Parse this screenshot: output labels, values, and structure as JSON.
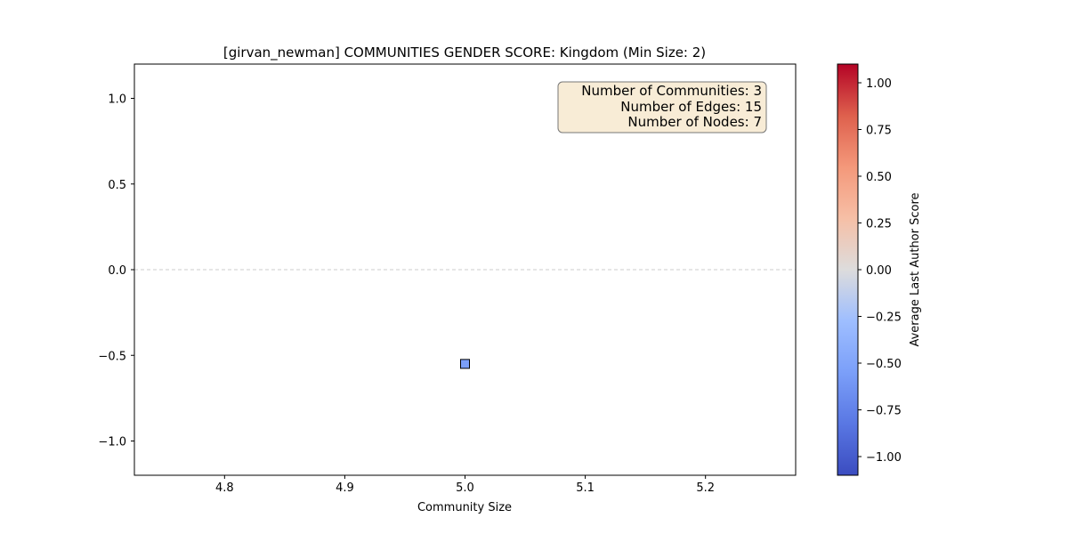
{
  "chart_data": {
    "type": "scatter",
    "title": "[girvan_newman] COMMUNITIES GENDER SCORE: Kingdom (Min Size: 2)",
    "xlabel": "Community Size",
    "ylabel": "",
    "xlim": [
      4.725,
      5.275
    ],
    "ylim": [
      -1.2,
      1.2
    ],
    "x_ticks": [
      4.8,
      4.9,
      5.0,
      5.1,
      5.2
    ],
    "x_tick_labels": [
      "4.8",
      "4.9",
      "5.0",
      "5.1",
      "5.2"
    ],
    "y_ticks": [
      -1.0,
      -0.5,
      0.0,
      0.5,
      1.0
    ],
    "y_tick_labels": [
      "−1.0",
      "−0.5",
      "0.0",
      "0.5",
      "1.0"
    ],
    "grid": false,
    "reference_line": {
      "y": 0.0,
      "style": "dashed",
      "color": "#cccccc"
    },
    "marker": "square",
    "series": [
      {
        "x": [
          5.0
        ],
        "y": [
          -0.55
        ],
        "color_value": [
          -0.55
        ]
      }
    ],
    "info_box": {
      "lines": [
        "Number of Communities: 3",
        "Number of Edges: 15",
        "Number of Nodes: 7"
      ],
      "position": "top-right",
      "background": "#f8ecd6"
    },
    "colorbar": {
      "label": "Average Last Author Score",
      "colormap": "coolwarm",
      "vmin": -1.1,
      "vmax": 1.1,
      "ticks": [
        -1.0,
        -0.75,
        -0.5,
        -0.25,
        0.0,
        0.25,
        0.5,
        0.75,
        1.0
      ],
      "tick_labels": [
        "−1.00",
        "−0.75",
        "−0.50",
        "−0.25",
        "0.00",
        "0.25",
        "0.50",
        "0.75",
        "1.00"
      ]
    }
  }
}
